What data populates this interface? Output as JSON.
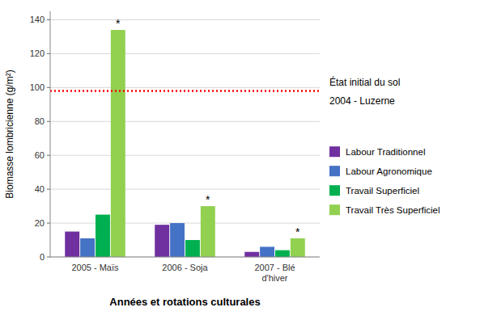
{
  "chart_data": {
    "type": "bar",
    "categories": [
      "2005 - Maïs",
      "2006 - Soja",
      "2007 - Blé\nd'hiver"
    ],
    "series": [
      {
        "name": "Labour Traditionnel",
        "color": "#7030A0",
        "values": [
          15,
          19,
          3
        ]
      },
      {
        "name": "Labour Agronomique",
        "color": "#4472C4",
        "values": [
          11,
          20,
          6
        ]
      },
      {
        "name": "Travail Superficiel",
        "color": "#00B050",
        "values": [
          25,
          10,
          4
        ]
      },
      {
        "name": "Travail Très Superficiel",
        "color": "#92D050",
        "values": [
          134,
          30,
          11
        ]
      }
    ],
    "x_label": "Années et rotations culturales",
    "y_label": "Biomasse lombricienne (g/m²)",
    "ylim": [
      0,
      145
    ],
    "yticks": [
      0,
      20,
      40,
      60,
      80,
      100,
      120,
      140
    ],
    "grid": true,
    "legend": "right",
    "reference_lines": [
      {
        "value": 98,
        "color": "red",
        "line_style": "dotted",
        "labels": [
          "État initial du sol",
          "2004 - Luzerne"
        ]
      }
    ],
    "annotations": [
      {
        "text": "*",
        "series": "Travail Très Superficiel"
      }
    ]
  }
}
